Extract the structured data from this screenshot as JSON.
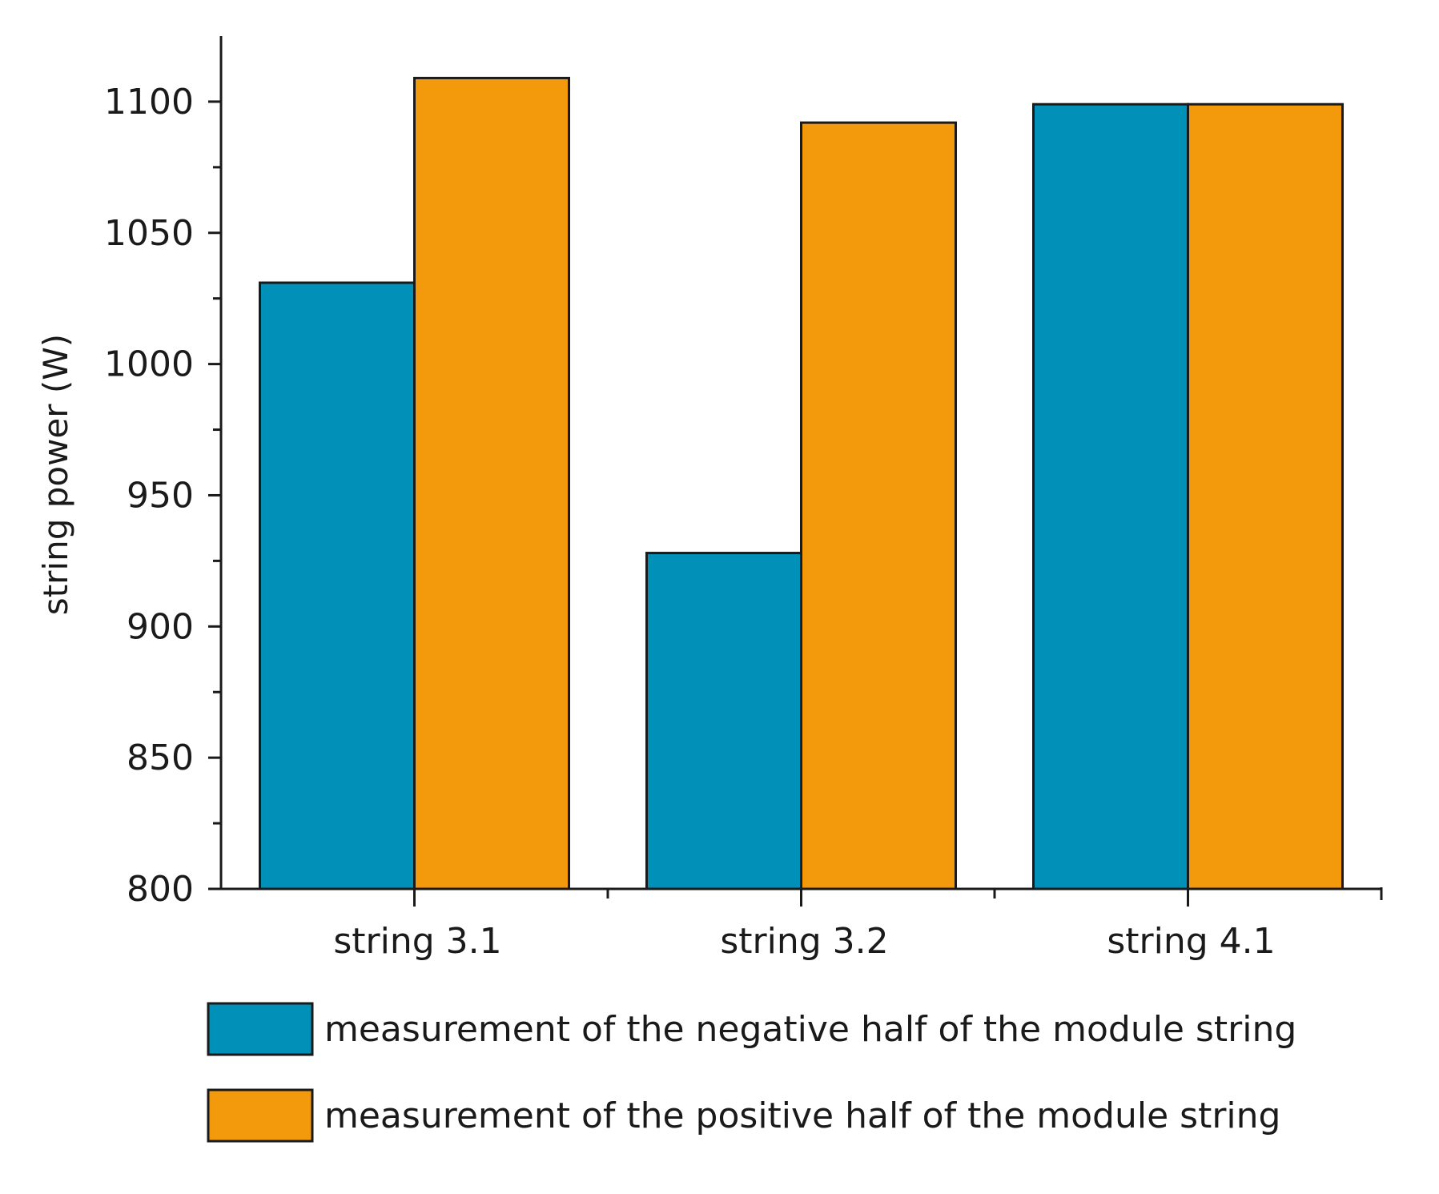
{
  "chart_data": {
    "type": "bar",
    "title": "",
    "xlabel": "",
    "ylabel": "string power (W)",
    "ylim": [
      800,
      1125
    ],
    "yticks": [
      800,
      850,
      900,
      950,
      1000,
      1050,
      1100
    ],
    "categories": [
      "string 3.1",
      "string 3.2",
      "string 4.1"
    ],
    "series": [
      {
        "name": "measurement of the negative half of the module string",
        "color": "#0090b8",
        "values": [
          1031,
          928,
          1099
        ]
      },
      {
        "name": "measurement of the positive half of the module string",
        "color": "#f39a0c",
        "values": [
          1109,
          1092,
          1099
        ]
      }
    ],
    "grid": false,
    "legend_position": "bottom"
  }
}
